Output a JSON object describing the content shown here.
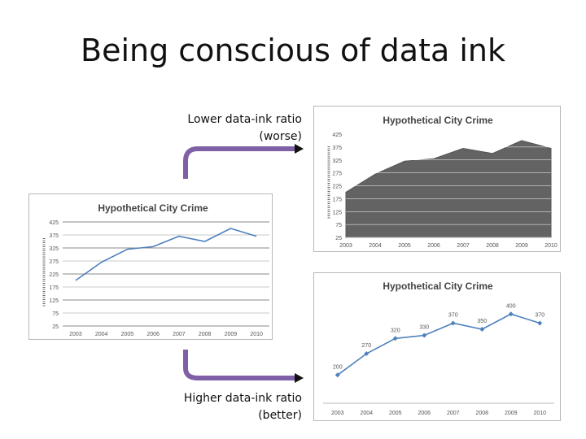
{
  "slide": {
    "title": "Being conscious of data ink",
    "caption_top_line1": "Lower data-ink ratio",
    "caption_top_line2": "(worse)",
    "caption_bottom_line1": "Higher data-ink ratio",
    "caption_bottom_line2": "(better)"
  },
  "colors": {
    "arrow": "#7f5fa5",
    "series_line": "#4f81bd",
    "area_fill": "#636363"
  },
  "chart_data": [
    {
      "id": "left-line",
      "type": "line",
      "title": "Hypothetical City Crime",
      "categories": [
        "2003",
        "2004",
        "2005",
        "2006",
        "2007",
        "2008",
        "2009",
        "2010"
      ],
      "series": [
        {
          "values": [
            200,
            270,
            320,
            330,
            370,
            350,
            400,
            370
          ]
        }
      ],
      "yticks": [
        "25",
        "75",
        "125",
        "175",
        "225",
        "275",
        "325",
        "375",
        "425"
      ],
      "ylim": [
        25,
        425
      ],
      "grid": true,
      "yaxis_label_illegible": true
    },
    {
      "id": "top-right-area",
      "type": "area",
      "title": "Hypothetical City Crime",
      "categories": [
        "2003",
        "2004",
        "2005",
        "2006",
        "2007",
        "2008",
        "2009",
        "2010"
      ],
      "series": [
        {
          "values": [
            200,
            270,
            320,
            330,
            370,
            350,
            400,
            370
          ]
        }
      ],
      "yticks": [
        "25",
        "75",
        "125",
        "175",
        "225",
        "275",
        "325",
        "375",
        "425"
      ],
      "ylim": [
        25,
        425
      ],
      "grid": true,
      "yaxis_label_illegible": true
    },
    {
      "id": "bottom-right-line",
      "type": "line",
      "title": "Hypothetical City Crime",
      "categories": [
        "2003",
        "2004",
        "2005",
        "2006",
        "2007",
        "2008",
        "2009",
        "2010"
      ],
      "series": [
        {
          "values": [
            200,
            270,
            320,
            330,
            370,
            350,
            400,
            370
          ]
        }
      ],
      "data_labels": [
        "200",
        "270",
        "320",
        "330",
        "370",
        "350",
        "400",
        "370"
      ],
      "ylim": [
        150,
        430
      ],
      "grid": false,
      "markers": true
    }
  ]
}
